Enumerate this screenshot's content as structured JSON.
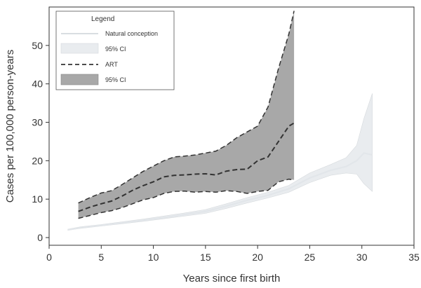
{
  "chart_data": {
    "type": "line",
    "xlabel": "Years since first birth",
    "ylabel": "Cases per 100,000 person-years",
    "xlim": [
      0,
      35
    ],
    "ylim": [
      -2,
      60
    ],
    "xticks": [
      0,
      5,
      10,
      15,
      20,
      25,
      30,
      35
    ],
    "yticks": [
      0,
      10,
      20,
      30,
      40,
      50
    ],
    "grid": false,
    "legend": {
      "title": "Legend",
      "position": "top-left",
      "entries": [
        "Natural conception",
        "95% CI",
        "ART",
        "95% CI"
      ]
    },
    "series": [
      {
        "name": "Natural conception",
        "style": "solid",
        "color": "#e2e6ea",
        "band_color": "#e9ecef",
        "x": [
          1.8,
          3,
          5,
          7,
          9,
          11,
          13,
          15,
          17,
          19,
          21,
          23,
          25,
          27,
          28.5,
          29.5,
          30.2,
          31
        ],
        "y": [
          2.0,
          2.6,
          3.2,
          3.8,
          4.5,
          5.2,
          6.0,
          6.8,
          8.2,
          9.7,
          11.0,
          12.7,
          15.5,
          17.5,
          18.5,
          20.0,
          22.0,
          21.5
        ],
        "lower": [
          1.9,
          2.4,
          3.0,
          3.6,
          4.2,
          4.9,
          5.6,
          6.3,
          7.6,
          9.0,
          10.3,
          11.8,
          14.3,
          16.2,
          16.8,
          16.5,
          14.0,
          12.0
        ],
        "upper": [
          2.2,
          2.8,
          3.4,
          4.1,
          4.8,
          5.6,
          6.4,
          7.3,
          8.8,
          10.4,
          11.8,
          13.6,
          16.8,
          19.0,
          20.8,
          24.0,
          31.0,
          37.5
        ]
      },
      {
        "name": "ART",
        "style": "dashed",
        "color": "#333333",
        "band_color": "#a8a8a8",
        "x": [
          2.8,
          4,
          5,
          6,
          7,
          8,
          9,
          10,
          11,
          12,
          13,
          14,
          15,
          16,
          17,
          18,
          19,
          20,
          21,
          22,
          23,
          23.5
        ],
        "y": [
          6.8,
          8.0,
          8.8,
          9.5,
          10.8,
          12.3,
          13.5,
          14.5,
          15.8,
          16.2,
          16.3,
          16.5,
          16.6,
          16.3,
          17.3,
          17.7,
          17.8,
          20.0,
          21.0,
          25.0,
          29.0,
          29.8
        ],
        "lower": [
          5.0,
          5.8,
          6.5,
          7.0,
          7.8,
          8.8,
          9.8,
          10.4,
          11.5,
          12.0,
          12.1,
          11.8,
          12.0,
          11.8,
          12.2,
          12.0,
          11.5,
          12.0,
          12.3,
          14.5,
          15.2,
          15.0
        ],
        "upper": [
          9.0,
          10.5,
          11.6,
          12.2,
          13.8,
          15.5,
          17.2,
          18.6,
          20.0,
          21.0,
          21.2,
          21.5,
          22.0,
          22.5,
          24.0,
          26.0,
          27.5,
          29.0,
          34.0,
          44.0,
          53.0,
          59.0
        ]
      }
    ]
  }
}
